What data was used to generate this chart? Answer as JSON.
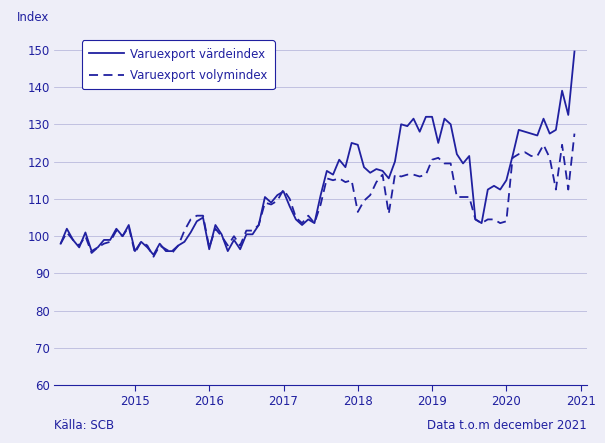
{
  "ylabel": "Index",
  "ylim": [
    60,
    155
  ],
  "yticks": [
    60,
    70,
    80,
    90,
    100,
    110,
    120,
    130,
    140,
    150
  ],
  "line_color": "#2020a0",
  "bg_color": "#eeeef8",
  "legend1": "Varuexport värdeindex",
  "legend2": "Varuexport volymindex",
  "footer_left": "Källa: SCB",
  "footer_right": "Data t.o.m december 2021",
  "xtick_labels": [
    "2015",
    "2016",
    "2017",
    "2018",
    "2019",
    "2020",
    "2021"
  ],
  "vardeindex": [
    98.0,
    102.0,
    99.0,
    97.0,
    101.0,
    96.0,
    97.0,
    99.0,
    99.0,
    102.0,
    100.0,
    103.0,
    96.0,
    98.5,
    97.0,
    95.0,
    98.0,
    96.0,
    96.0,
    97.5,
    98.5,
    101.0,
    104.0,
    105.0,
    96.5,
    103.0,
    100.5,
    96.0,
    99.0,
    96.5,
    100.5,
    100.5,
    103.0,
    110.5,
    109.0,
    111.0,
    112.0,
    108.0,
    104.5,
    103.0,
    104.5,
    103.5,
    111.0,
    117.5,
    116.5,
    120.5,
    118.5,
    125.0,
    124.5,
    118.5,
    117.0,
    118.0,
    117.5,
    115.5,
    120.0,
    130.0,
    129.5,
    131.5,
    128.0,
    132.0,
    132.0,
    125.0,
    131.5,
    130.0,
    122.0,
    119.5,
    121.5,
    104.5,
    103.5,
    112.5,
    113.5,
    112.5,
    115.0,
    121.5,
    128.5,
    128.0,
    127.5,
    127.0,
    131.5,
    127.5,
    128.5,
    139.0,
    132.5,
    149.5
  ],
  "volymindex": [
    98.0,
    101.0,
    99.0,
    97.5,
    100.0,
    95.5,
    97.0,
    98.0,
    98.5,
    101.5,
    100.0,
    102.5,
    95.5,
    98.5,
    97.5,
    94.5,
    97.5,
    96.5,
    95.5,
    97.5,
    101.5,
    104.5,
    105.5,
    105.5,
    97.0,
    102.0,
    100.0,
    97.5,
    100.0,
    97.5,
    101.5,
    101.5,
    103.0,
    109.0,
    108.5,
    109.5,
    112.5,
    110.0,
    105.0,
    103.5,
    105.5,
    103.5,
    108.5,
    115.5,
    115.0,
    115.5,
    114.5,
    115.0,
    106.5,
    109.5,
    111.0,
    114.5,
    116.5,
    106.0,
    116.5,
    116.0,
    116.5,
    116.5,
    116.0,
    116.5,
    120.5,
    121.0,
    119.5,
    119.5,
    110.5,
    110.5,
    110.5,
    104.5,
    103.5,
    104.5,
    104.5,
    103.5,
    104.0,
    121.0,
    122.0,
    122.5,
    121.5,
    121.5,
    124.5,
    121.0,
    112.5,
    124.5,
    112.5,
    127.5
  ]
}
